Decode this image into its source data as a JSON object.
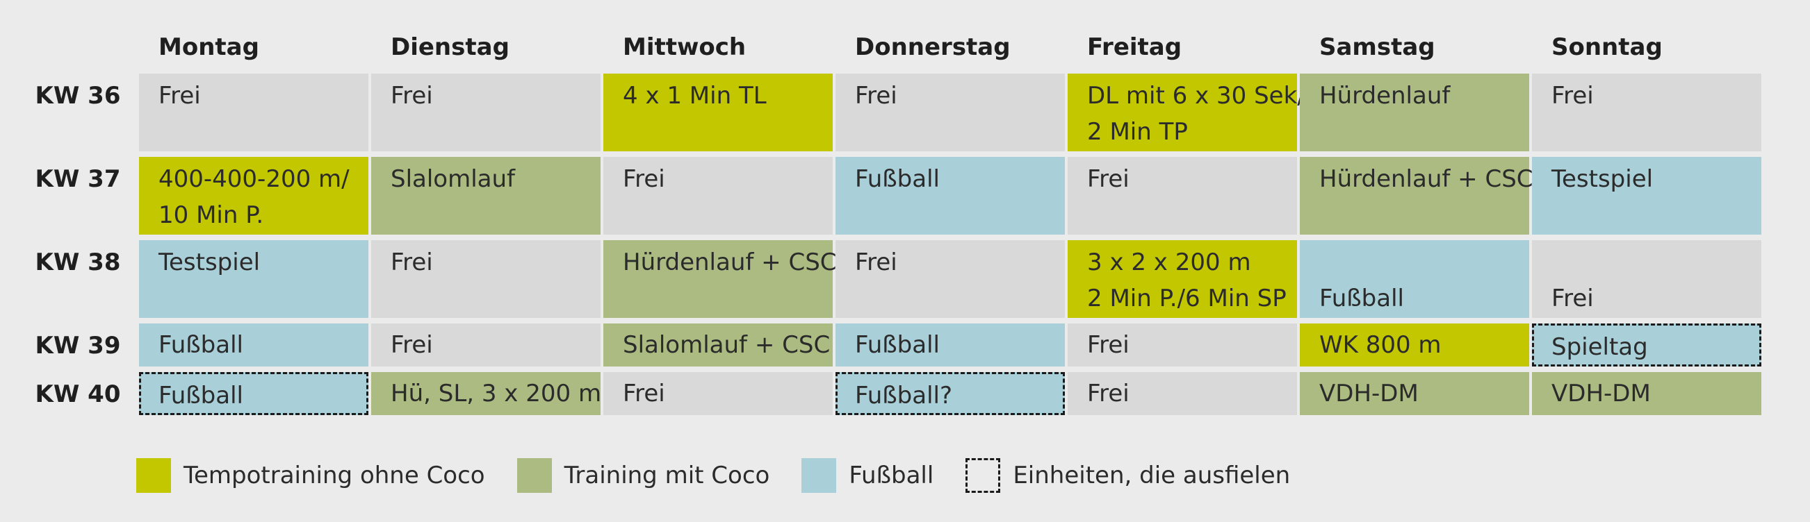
{
  "days": [
    "Montag",
    "Dienstag",
    "Mittwoch",
    "Donnerstag",
    "Freitag",
    "Samstag",
    "Sonntag"
  ],
  "weeks": [
    {
      "label": "KW 36",
      "cells": [
        {
          "lines": [
            "Frei"
          ],
          "type": "free"
        },
        {
          "lines": [
            "Frei"
          ],
          "type": "free"
        },
        {
          "lines": [
            "4 x 1 Min TL"
          ],
          "type": "tempo"
        },
        {
          "lines": [
            "Frei"
          ],
          "type": "free"
        },
        {
          "lines": [
            "DL mit 6 x 30 Sek/",
            "2 Min TP"
          ],
          "type": "tempo"
        },
        {
          "lines": [
            "Hürdenlauf"
          ],
          "type": "coco"
        },
        {
          "lines": [
            "Frei"
          ],
          "type": "free"
        }
      ]
    },
    {
      "label": "KW 37",
      "cells": [
        {
          "lines": [
            "400-400-200 m/",
            "10 Min P."
          ],
          "type": "tempo"
        },
        {
          "lines": [
            "Slalomlauf"
          ],
          "type": "coco"
        },
        {
          "lines": [
            "Frei"
          ],
          "type": "free"
        },
        {
          "lines": [
            "Fußball"
          ],
          "type": "fussball"
        },
        {
          "lines": [
            "Frei"
          ],
          "type": "free"
        },
        {
          "lines": [
            "Hürdenlauf + CSC"
          ],
          "type": "coco"
        },
        {
          "lines": [
            "Testspiel"
          ],
          "type": "fussball"
        }
      ]
    },
    {
      "label": "KW 38",
      "cells": [
        {
          "lines": [
            "Testspiel"
          ],
          "type": "fussball"
        },
        {
          "lines": [
            "Frei"
          ],
          "type": "free"
        },
        {
          "lines": [
            "Hürdenlauf + CSC"
          ],
          "type": "coco"
        },
        {
          "lines": [
            "Frei"
          ],
          "type": "free"
        },
        {
          "lines": [
            "3 x 2 x 200 m",
            "2 Min P./6 Min SP"
          ],
          "type": "tempo"
        },
        {
          "lines": [
            "Fußball"
          ],
          "type": "fussball",
          "align": "bottom"
        },
        {
          "lines": [
            "Frei"
          ],
          "type": "free",
          "align": "bottom"
        }
      ]
    },
    {
      "label": "KW 39",
      "cells": [
        {
          "lines": [
            "Fußball"
          ],
          "type": "fussball"
        },
        {
          "lines": [
            "Frei"
          ],
          "type": "free"
        },
        {
          "lines": [
            "Slalomlauf + CSC"
          ],
          "type": "coco"
        },
        {
          "lines": [
            "Fußball"
          ],
          "type": "fussball"
        },
        {
          "lines": [
            "Frei"
          ],
          "type": "free"
        },
        {
          "lines": [
            "WK 800 m"
          ],
          "type": "tempo"
        },
        {
          "lines": [
            "Spieltag"
          ],
          "type": "fussball",
          "cancelled": true
        }
      ]
    },
    {
      "label": "KW 40",
      "cells": [
        {
          "lines": [
            "Fußball"
          ],
          "type": "fussball",
          "cancelled": true
        },
        {
          "lines": [
            "Hü, SL, 3 x 200 m"
          ],
          "type": "coco"
        },
        {
          "lines": [
            "Frei"
          ],
          "type": "free"
        },
        {
          "lines": [
            "Fußball?"
          ],
          "type": "fussball",
          "cancelled": true
        },
        {
          "lines": [
            "Frei"
          ],
          "type": "free"
        },
        {
          "lines": [
            "VDH-DM"
          ],
          "type": "coco"
        },
        {
          "lines": [
            "VDH-DM"
          ],
          "type": "coco"
        }
      ]
    }
  ],
  "legend": [
    {
      "type": "tempo",
      "label": "Tempotraining ohne Coco"
    },
    {
      "type": "coco",
      "label": "Training mit Coco"
    },
    {
      "type": "fussball",
      "label": "Fußball"
    },
    {
      "type": "cancelled",
      "label": "Einheiten, die ausfielen"
    }
  ],
  "colors": {
    "free": "#d9d9d9",
    "tempo": "#c3c700",
    "coco": "#abbb81",
    "fussball": "#a9cfd9",
    "background": "#ebebeb"
  }
}
